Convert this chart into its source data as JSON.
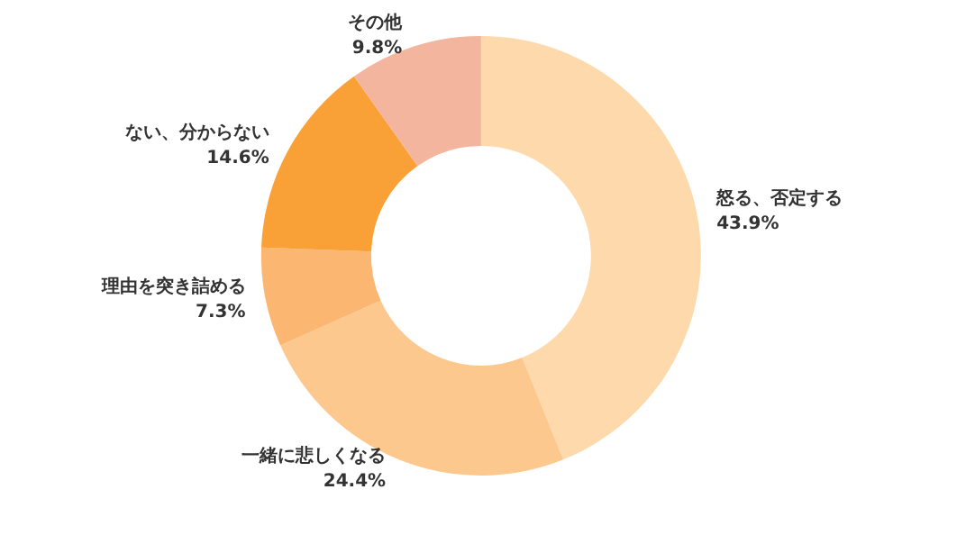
{
  "chart_data": {
    "type": "donut",
    "categories": [
      "怒る、否定する",
      "一緒に悲しくなる",
      "理由を突き詰める",
      "ない、分からない",
      "その他"
    ],
    "values": [
      43.9,
      24.4,
      7.3,
      14.6,
      9.8
    ],
    "value_labels": [
      "43.9%",
      "24.4%",
      "7.3%",
      "14.6%",
      "9.8%"
    ],
    "colors": [
      "#fdd9ab",
      "#fcc88e",
      "#fbb672",
      "#f9a037",
      "#f4b59e"
    ],
    "legend": false
  }
}
